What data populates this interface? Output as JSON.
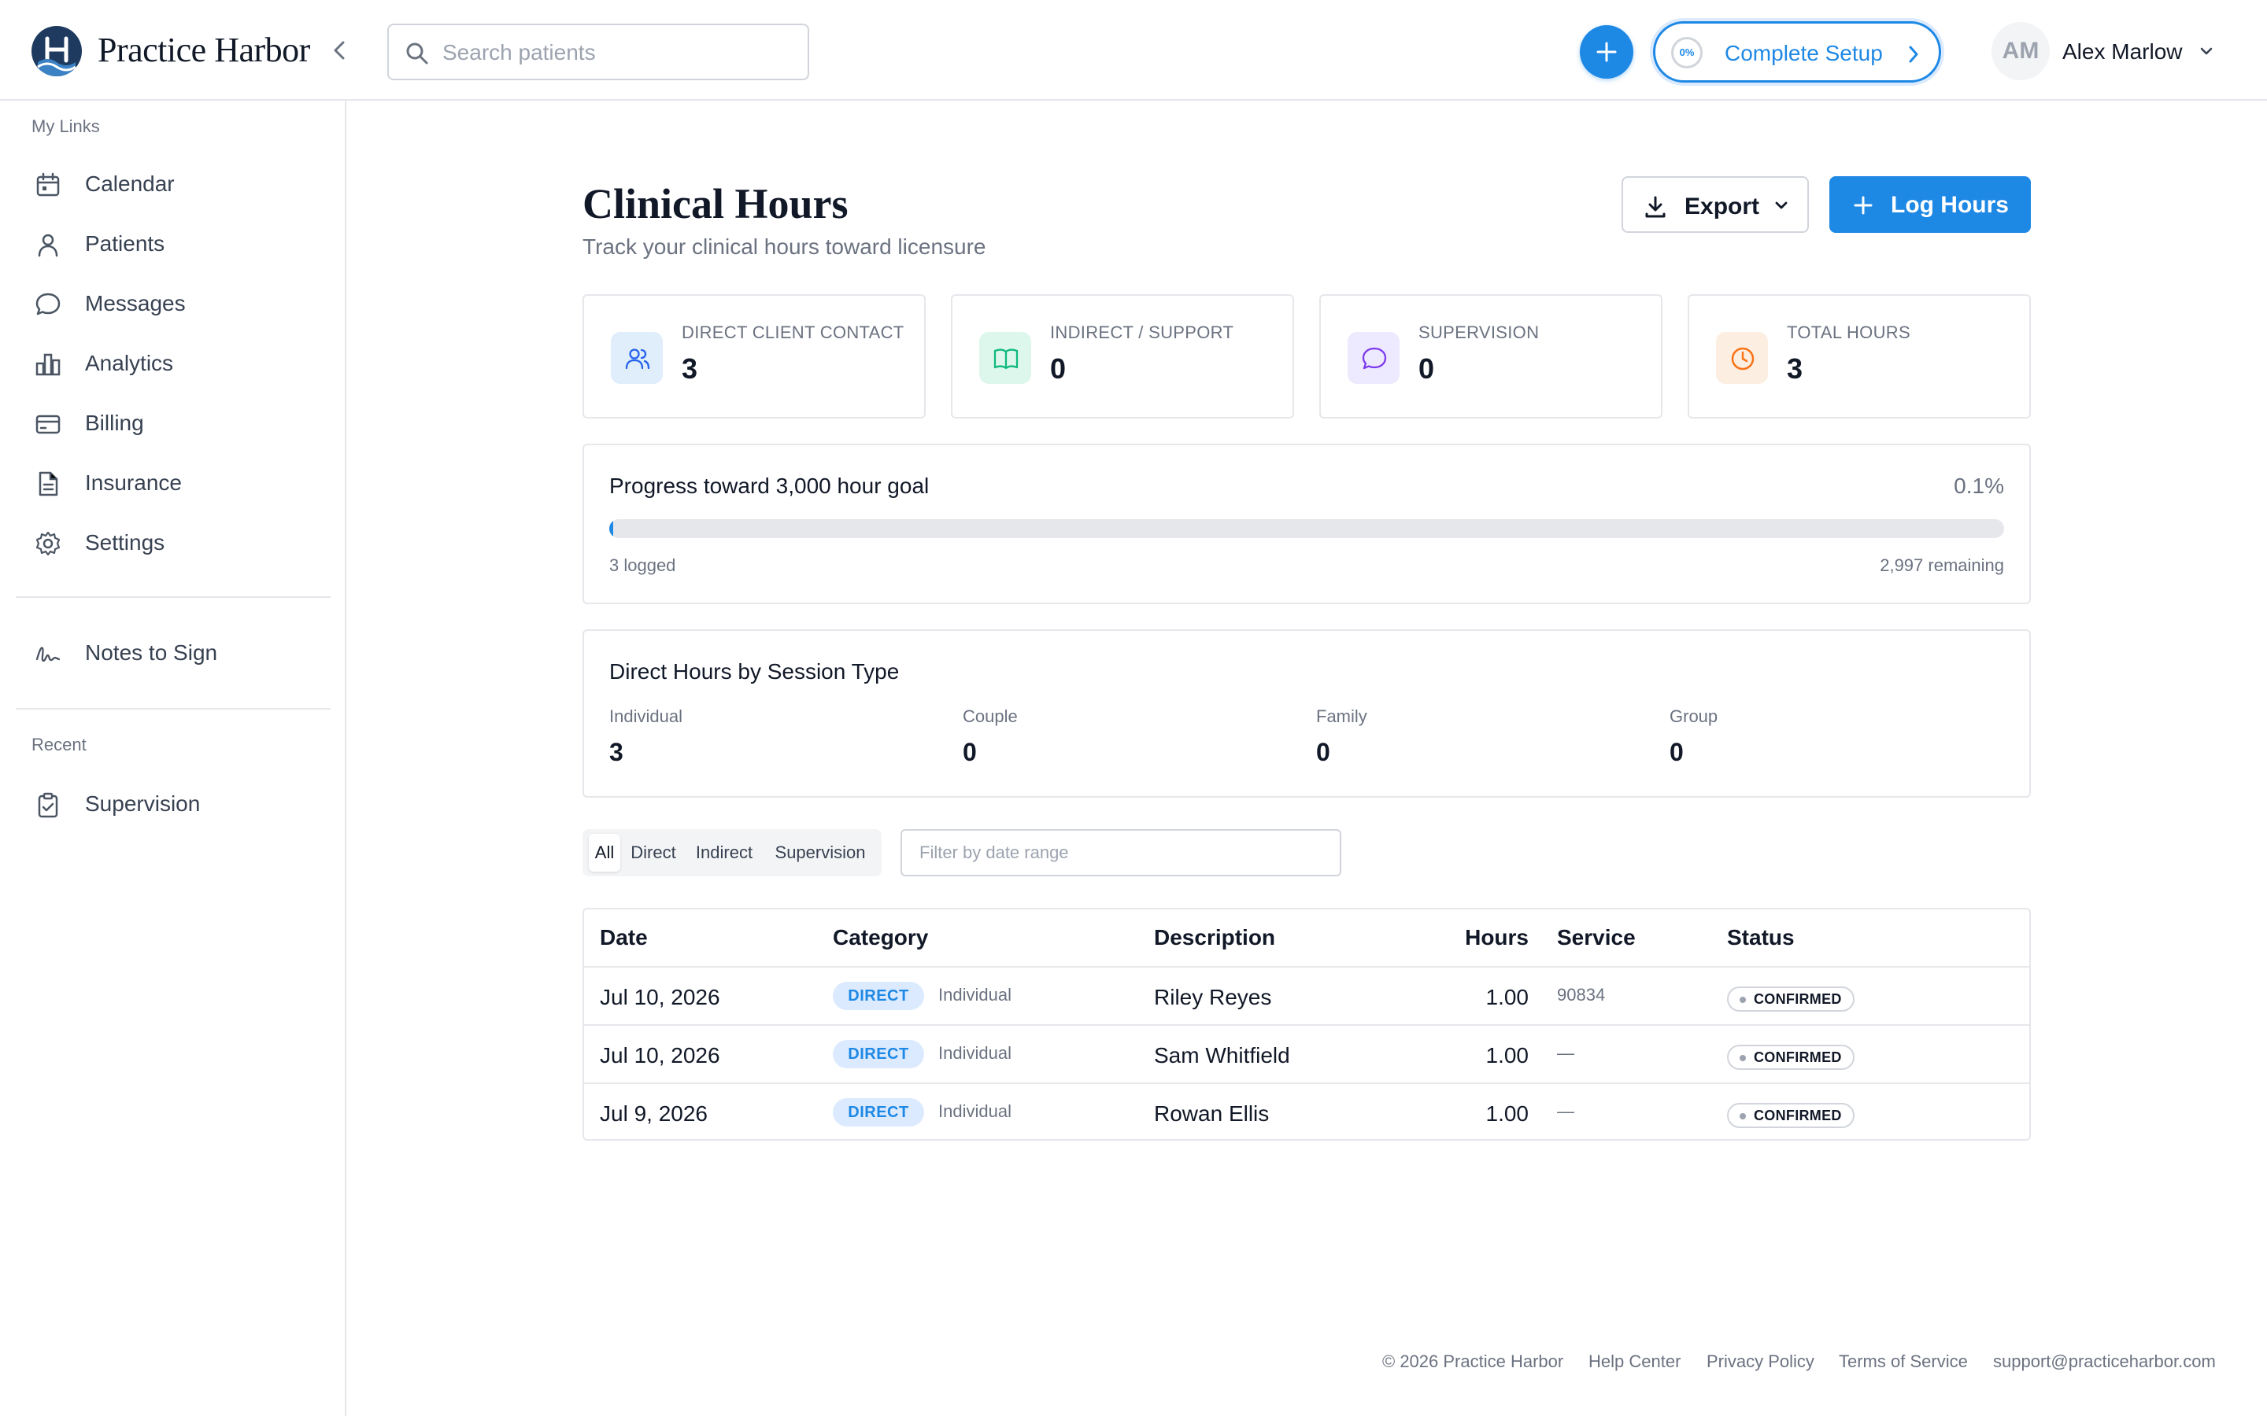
{
  "header": {
    "brand": "Practice Harbor",
    "search_placeholder": "Search patients",
    "setup": {
      "progress_label": "0%",
      "label": "Complete Setup"
    },
    "user": {
      "initials": "AM",
      "name": "Alex Marlow"
    }
  },
  "sidebar": {
    "section_my_links": "My Links",
    "items": [
      {
        "label": "Calendar",
        "icon": "calendar-icon"
      },
      {
        "label": "Patients",
        "icon": "user-icon"
      },
      {
        "label": "Messages",
        "icon": "message-icon"
      },
      {
        "label": "Analytics",
        "icon": "bar-chart-icon"
      },
      {
        "label": "Billing",
        "icon": "credit-card-icon"
      },
      {
        "label": "Insurance",
        "icon": "document-icon"
      },
      {
        "label": "Settings",
        "icon": "gear-icon"
      }
    ],
    "notes_to_sign": "Notes to Sign",
    "section_recent": "Recent",
    "recent_items": [
      {
        "label": "Supervision",
        "icon": "clipboard-check-icon"
      }
    ]
  },
  "main": {
    "title": "Clinical Hours",
    "subtitle": "Track your clinical hours toward licensure",
    "export_label": "Export",
    "log_hours_label": "Log Hours",
    "stats": [
      {
        "label": "DIRECT CLIENT CONTACT",
        "value": "3",
        "icon": "users-icon",
        "color": "#2563eb",
        "bg": "#e0edfb"
      },
      {
        "label": "INDIRECT / SUPPORT",
        "value": "0",
        "icon": "book-open-icon",
        "color": "#10b981",
        "bg": "#def7ec"
      },
      {
        "label": "SUPERVISION",
        "value": "0",
        "icon": "chat-bubble-icon",
        "color": "#7c3aed",
        "bg": "#ede9fe"
      },
      {
        "label": "TOTAL HOURS",
        "value": "3",
        "icon": "clock-icon",
        "color": "#f97316",
        "bg": "#fdeee2"
      }
    ],
    "progress": {
      "title": "Progress toward 3,000 hour goal",
      "percent_label": "0.1%",
      "fraction": 0.001,
      "logged": "3 logged",
      "remaining": "2,997 remaining"
    },
    "session_types": {
      "title": "Direct Hours by Session Type",
      "items": [
        {
          "label": "Individual",
          "value": "3"
        },
        {
          "label": "Couple",
          "value": "0"
        },
        {
          "label": "Family",
          "value": "0"
        },
        {
          "label": "Group",
          "value": "0"
        }
      ]
    },
    "filters": {
      "tabs": [
        "All",
        "Direct",
        "Indirect",
        "Supervision"
      ],
      "active": "All",
      "date_placeholder": "Filter by date range"
    },
    "table": {
      "columns": [
        "Date",
        "Category",
        "Description",
        "Hours",
        "Service",
        "Status"
      ],
      "rows": [
        {
          "date": "Jul 10, 2026",
          "category": "DIRECT",
          "session": "Individual",
          "description": "Riley Reyes",
          "hours": "1.00",
          "service": "90834",
          "status": "CONFIRMED"
        },
        {
          "date": "Jul 10, 2026",
          "category": "DIRECT",
          "session": "Individual",
          "description": "Sam Whitfield",
          "hours": "1.00",
          "service": "—",
          "status": "CONFIRMED"
        },
        {
          "date": "Jul 9, 2026",
          "category": "DIRECT",
          "session": "Individual",
          "description": "Rowan Ellis",
          "hours": "1.00",
          "service": "—",
          "status": "CONFIRMED"
        }
      ]
    }
  },
  "footer": {
    "copyright": "© 2026 Practice Harbor",
    "links": [
      "Help Center",
      "Privacy Policy",
      "Terms of Service",
      "support@practiceharbor.com"
    ]
  },
  "colors": {
    "accent": "#1e88e5",
    "brand_dark": "#1e3a5f",
    "border": "#e5e7eb"
  }
}
